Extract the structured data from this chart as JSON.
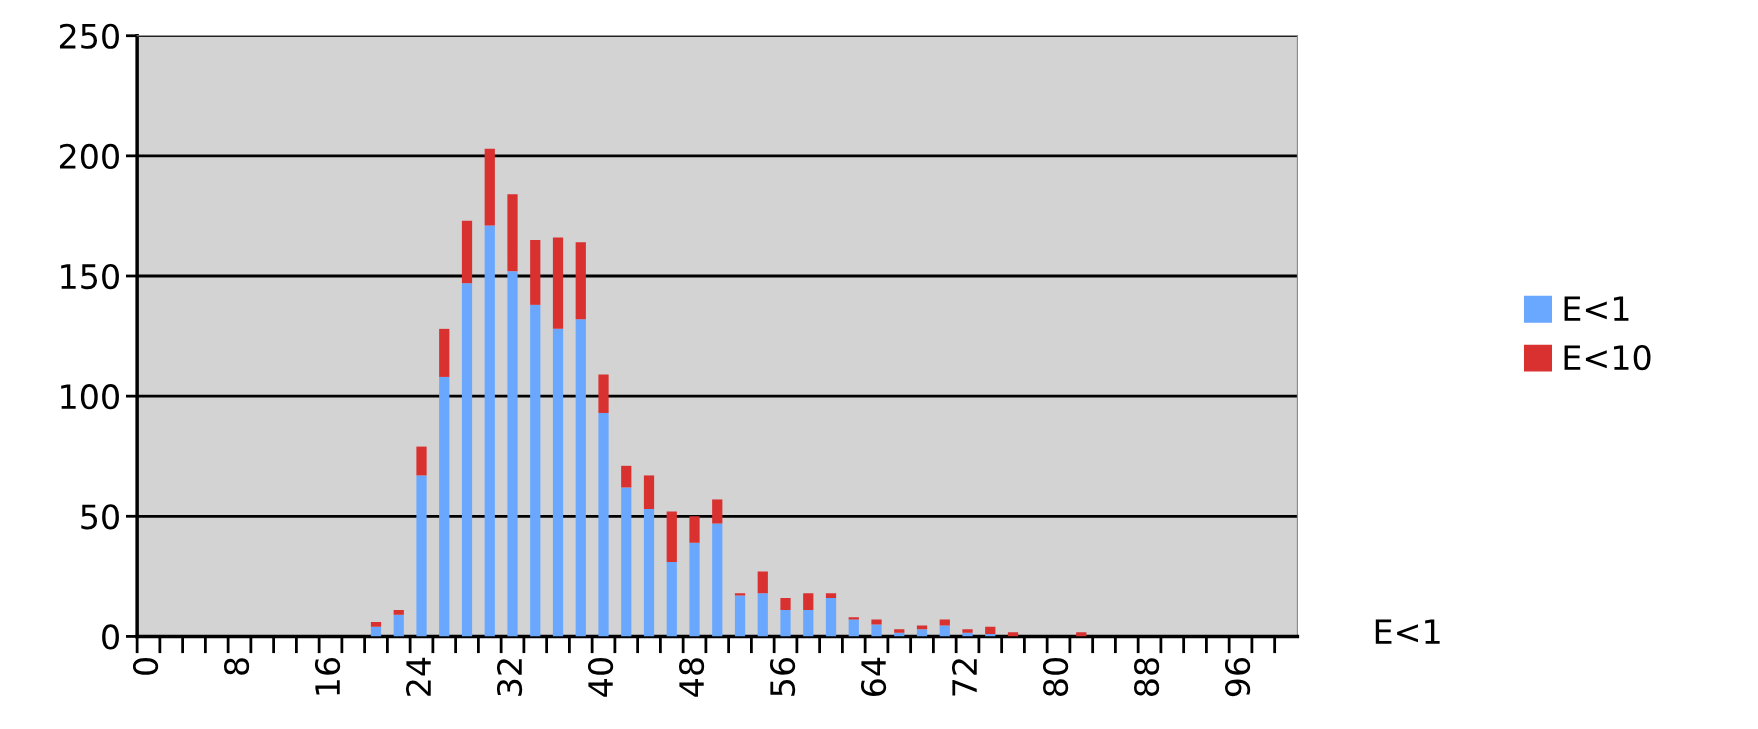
{
  "chart_data": {
    "type": "bar",
    "stacked": true,
    "xlabel": "E<1",
    "categories": [
      "0",
      null,
      null,
      null,
      "8",
      null,
      null,
      null,
      "16",
      null,
      null,
      null,
      "24",
      null,
      null,
      null,
      "32",
      null,
      null,
      null,
      "40",
      null,
      null,
      null,
      "48",
      null,
      null,
      null,
      "56",
      null,
      null,
      null,
      "64",
      null,
      null,
      null,
      "72",
      null,
      null,
      null,
      "80",
      null,
      null,
      null,
      "88",
      null,
      null,
      null,
      "96",
      null,
      null
    ],
    "series": [
      {
        "name": "E<1",
        "color": "#6aa8ff",
        "values": [
          0,
          0,
          0,
          0,
          0,
          0,
          0,
          0,
          0,
          0,
          4,
          9,
          67,
          108,
          147,
          171,
          152,
          138,
          128,
          132,
          93,
          62,
          53,
          31,
          39,
          47,
          17,
          18,
          11,
          11,
          16,
          7,
          5,
          1.5,
          3,
          4.5,
          1.5,
          1,
          null,
          0,
          0,
          null,
          0,
          0,
          0,
          0,
          0,
          0,
          0,
          0,
          0
        ]
      },
      {
        "name": "E<10",
        "color": "#d93030",
        "values": [
          0,
          0,
          0,
          0,
          0,
          0,
          0,
          0,
          0,
          0,
          2,
          2,
          12,
          20,
          26,
          32,
          32,
          27,
          38,
          32,
          16,
          9,
          14,
          21,
          11,
          10,
          1,
          9,
          5,
          7,
          2,
          1,
          2,
          1.5,
          1.5,
          2.5,
          1.5,
          3,
          1.7,
          0,
          0,
          1.7,
          0,
          0,
          0,
          0,
          0,
          0,
          0,
          0,
          0
        ]
      }
    ],
    "ylim": [
      0,
      250
    ],
    "yticks": [
      0,
      50,
      100,
      150,
      200,
      250
    ],
    "grid": "y",
    "legend": "right"
  }
}
